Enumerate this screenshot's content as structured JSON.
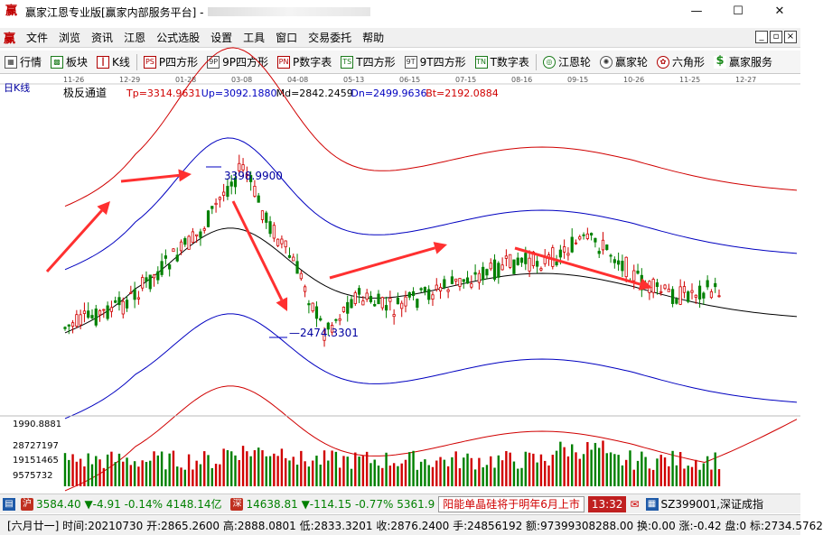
{
  "window": {
    "logo": "赢",
    "title": "赢家江恩专业版[赢家内部服务平台] -",
    "controls": {
      "minimize": "—",
      "maximize": "☐",
      "close": "✕"
    }
  },
  "menu": {
    "logo": "赢",
    "items": [
      "文件",
      "浏览",
      "资讯",
      "江恩",
      "公式选股",
      "设置",
      "工具",
      "窗口",
      "交易委托",
      "帮助"
    ]
  },
  "toolbar": {
    "items": [
      {
        "label": "行情",
        "icon": "grid-icon"
      },
      {
        "label": "板块",
        "icon": "blocks-icon"
      },
      {
        "label": "K线",
        "icon": "candle-icon"
      },
      {
        "label": "P四方形",
        "icon": "p-square-icon",
        "glyph": "PS"
      },
      {
        "label": "9P四方形",
        "icon": "9p-square-icon",
        "glyph": "9P"
      },
      {
        "label": "P数字表",
        "icon": "p-table-icon",
        "glyph": "PN"
      },
      {
        "label": "T四方形",
        "icon": "t-square-icon",
        "glyph": "TS"
      },
      {
        "label": "9T四方形",
        "icon": "9t-square-icon",
        "glyph": "9T"
      },
      {
        "label": "T数字表",
        "icon": "t-table-icon",
        "glyph": "TN"
      },
      {
        "label": "江恩轮",
        "icon": "gann-wheel-icon"
      },
      {
        "label": "赢家轮",
        "icon": "winner-wheel-icon"
      },
      {
        "label": "六角形",
        "icon": "hexagon-icon"
      },
      {
        "label": "赢家服务",
        "icon": "dollar-icon",
        "glyph": "$"
      }
    ]
  },
  "chart": {
    "period_label": "日K线",
    "indicator_name": "极反通道",
    "indicator_values": [
      {
        "text": "Tp=3314.9631",
        "color": "#d00000"
      },
      {
        "text": "Up=3092.1880",
        "color": "#0000c0"
      },
      {
        "text": "Md=2842.2459",
        "color": "#000000"
      },
      {
        "text": "Dn=2499.9636",
        "color": "#0000c0"
      },
      {
        "text": "Bt=2192.0884",
        "color": "#d00000"
      }
    ],
    "date_ticks": [
      "11-26",
      "12-29",
      "01-28",
      "03-08",
      "04-08",
      "05-13",
      "06-15",
      "07-15",
      "08-16",
      "09-15",
      "10-26",
      "11-25",
      "12-27"
    ],
    "high_label": "3398.9900",
    "low_label": "2474.3301",
    "volume_labels": [
      "1990.8881",
      "28727197",
      "19151465",
      "9575732"
    ],
    "colors": {
      "up": "#d00000",
      "down": "#008000",
      "upper_band": "#d00000",
      "mid_band": "#0000c0",
      "center": "#000000",
      "arrow": "#ff3030"
    }
  },
  "chart_data": {
    "type": "candlestick",
    "title": "",
    "indicator": "极反通道",
    "x_range": [
      "11-26",
      "12-27"
    ],
    "y_range_approx": [
      2200,
      3500
    ],
    "notable_points": [
      {
        "label": "3398.9900",
        "kind": "high",
        "period": "02-18"
      },
      {
        "label": "2474.3301",
        "kind": "low",
        "period": "03-25"
      }
    ],
    "bands": [
      "Tp",
      "Up",
      "Md",
      "Dn",
      "Bt"
    ],
    "band_last_values": {
      "Tp": 3314.9631,
      "Up": 3092.188,
      "Md": 2842.2459,
      "Dn": 2499.9636,
      "Bt": 2192.0884
    },
    "volume_axis_ticks": [
      28727197,
      19151465,
      9575732
    ],
    "grid": false
  },
  "status1": {
    "index1": {
      "value": "3584.40",
      "change": "▼-4.91",
      "pct": "-0.14%",
      "amount": "4148.14亿"
    },
    "index2": {
      "value": "14638.81",
      "change": "▼-114.15",
      "pct": "-0.77%",
      "amount": "5361.9"
    },
    "news": "阳能单晶硅将于明年6月上市",
    "time": "13:32",
    "code": "SZ399001,深证成指"
  },
  "status2": {
    "text": "[六月廿一] 时间:20210730 开:2865.2600 高:2888.0801 低:2833.3201 收:2876.2400 手:24856192 额:97399308288.00 换:0.00 涨:-0.42 盘:0 标:2734.5762"
  }
}
